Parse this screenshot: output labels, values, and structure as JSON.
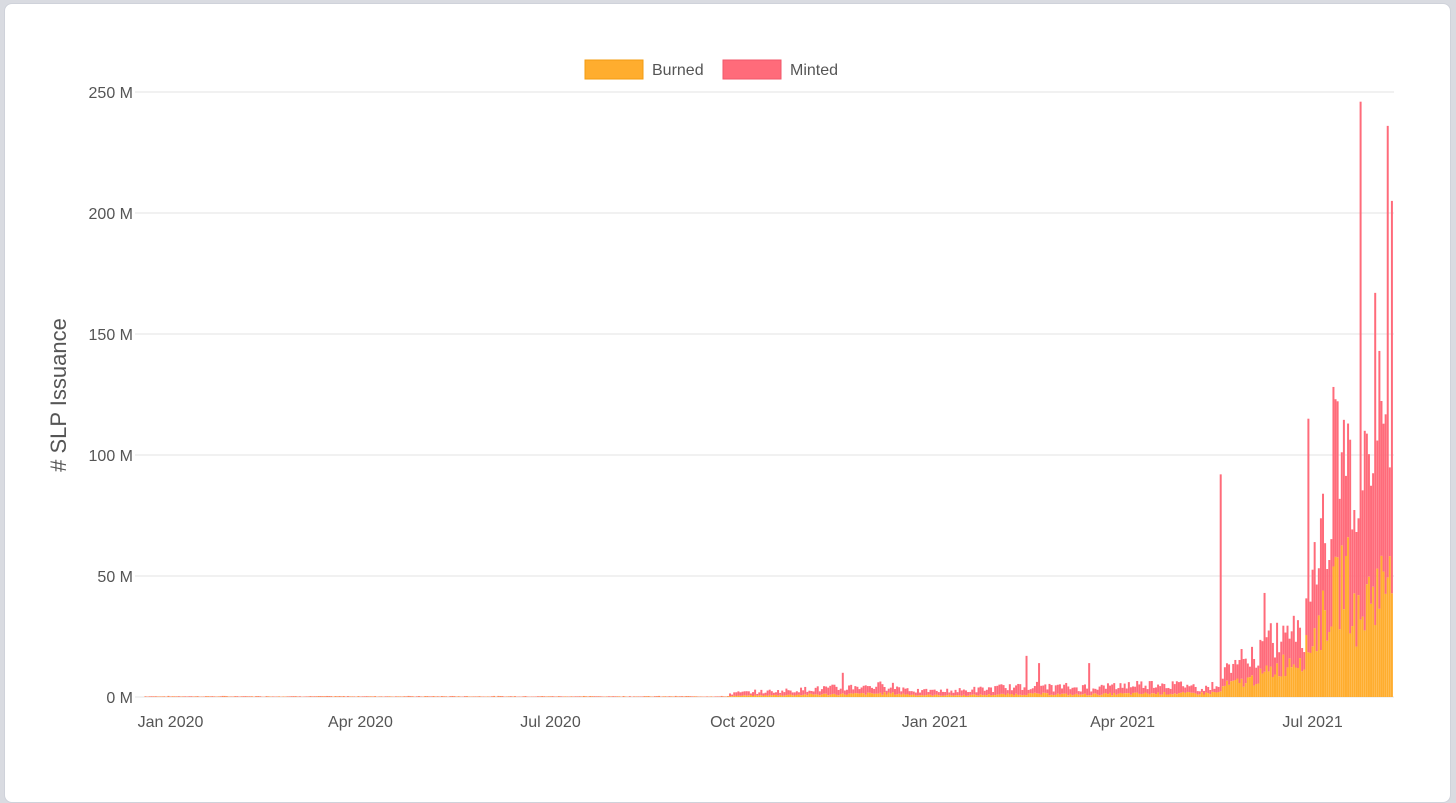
{
  "colors": {
    "burned_fill": "#ffad2e",
    "burned_stroke": "#f39c12",
    "minted_fill": "#ff6b7a",
    "minted_stroke": "#f2576a",
    "grid": "#e3e3e3",
    "text": "#555555"
  },
  "chart_data": {
    "type": "bar",
    "stacked": true,
    "ylabel": "# SLP Issuance",
    "ylim": [
      0,
      250
    ],
    "y_unit": "M",
    "yticks": [
      {
        "value": 0,
        "label": "0 M"
      },
      {
        "value": 50,
        "label": "50 M"
      },
      {
        "value": 100,
        "label": "100 M"
      },
      {
        "value": 150,
        "label": "150 M"
      },
      {
        "value": 200,
        "label": "200 M"
      },
      {
        "value": 250,
        "label": "250 M"
      }
    ],
    "xlim": [
      "2019-12-15",
      "2021-08-09"
    ],
    "xticks": [
      {
        "date": "2020-01-01",
        "label": "Jan 2020"
      },
      {
        "date": "2020-04-01",
        "label": "Apr 2020"
      },
      {
        "date": "2020-07-01",
        "label": "Jul 2020"
      },
      {
        "date": "2020-10-01",
        "label": "Oct 2020"
      },
      {
        "date": "2021-01-01",
        "label": "Jan 2021"
      },
      {
        "date": "2021-04-01",
        "label": "Apr 2021"
      },
      {
        "date": "2021-07-01",
        "label": "Jul 2021"
      }
    ],
    "grid": true,
    "legend_position": "top-center",
    "series": [
      {
        "name": "Burned",
        "points": [
          [
            "2020-09-25",
            0.5
          ],
          [
            "2020-10-15",
            0.7
          ],
          [
            "2020-11-01",
            1.0
          ],
          [
            "2020-11-20",
            1.2
          ],
          [
            "2020-12-10",
            1.5
          ],
          [
            "2020-12-25",
            0.8
          ],
          [
            "2021-01-15",
            0.7
          ],
          [
            "2021-02-01",
            1.0
          ],
          [
            "2021-02-20",
            1.3
          ],
          [
            "2021-03-10",
            1.0
          ],
          [
            "2021-04-01",
            1.3
          ],
          [
            "2021-04-20",
            1.5
          ],
          [
            "2021-05-10",
            1.5
          ],
          [
            "2021-05-18",
            2.0
          ],
          [
            "2021-05-19",
            4.5
          ],
          [
            "2021-05-24",
            5.5
          ],
          [
            "2021-05-30",
            6.5
          ],
          [
            "2021-06-05",
            8.0
          ],
          [
            "2021-06-12",
            11.0
          ],
          [
            "2021-06-18",
            14.0
          ],
          [
            "2021-06-25",
            17.0
          ],
          [
            "2021-06-28",
            18.5
          ],
          [
            "2021-07-01",
            25.0
          ],
          [
            "2021-07-05",
            30.0
          ],
          [
            "2021-07-08",
            36.0
          ],
          [
            "2021-07-11",
            40.0
          ],
          [
            "2021-07-14",
            45.0
          ],
          [
            "2021-07-16",
            55.0
          ],
          [
            "2021-07-18",
            48.0
          ],
          [
            "2021-07-21",
            35.0
          ],
          [
            "2021-07-24",
            30.0
          ],
          [
            "2021-07-27",
            40.0
          ],
          [
            "2021-07-30",
            46.0
          ],
          [
            "2021-08-02",
            45.0
          ],
          [
            "2021-08-05",
            48.0
          ],
          [
            "2021-08-07",
            62.0
          ]
        ]
      },
      {
        "name": "Minted",
        "points": [
          [
            "2020-09-25",
            1.0
          ],
          [
            "2020-10-15",
            1.5
          ],
          [
            "2020-11-01",
            2.0
          ],
          [
            "2020-11-20",
            2.5
          ],
          [
            "2020-12-10",
            3.0
          ],
          [
            "2020-12-25",
            1.5
          ],
          [
            "2021-01-15",
            1.8
          ],
          [
            "2021-02-01",
            2.5
          ],
          [
            "2021-02-20",
            3.0
          ],
          [
            "2021-03-10",
            2.5
          ],
          [
            "2021-04-01",
            3.0
          ],
          [
            "2021-04-20",
            4.0
          ],
          [
            "2021-05-10",
            2.0
          ],
          [
            "2021-05-18",
            3.0
          ],
          [
            "2021-05-19",
            5.0
          ],
          [
            "2021-05-24",
            7.0
          ],
          [
            "2021-05-30",
            8.0
          ],
          [
            "2021-06-05",
            9.0
          ],
          [
            "2021-06-12",
            11.0
          ],
          [
            "2021-06-18",
            12.0
          ],
          [
            "2021-06-25",
            13.0
          ],
          [
            "2021-06-28",
            13.5
          ],
          [
            "2021-07-01",
            25.0
          ],
          [
            "2021-07-05",
            35.0
          ],
          [
            "2021-07-08",
            40.0
          ],
          [
            "2021-07-11",
            45.0
          ],
          [
            "2021-07-14",
            50.0
          ],
          [
            "2021-07-16",
            55.0
          ],
          [
            "2021-07-18",
            50.0
          ],
          [
            "2021-07-21",
            60.0
          ],
          [
            "2021-07-24",
            65.0
          ],
          [
            "2021-07-27",
            60.0
          ],
          [
            "2021-07-30",
            55.0
          ],
          [
            "2021-08-02",
            50.0
          ],
          [
            "2021-08-05",
            45.0
          ],
          [
            "2021-08-07",
            40.0
          ]
        ],
        "spikes": [
          [
            "2020-11-18",
            10
          ],
          [
            "2021-02-14",
            17
          ],
          [
            "2021-02-20",
            14
          ],
          [
            "2021-03-16",
            14
          ],
          [
            "2021-05-18",
            92
          ],
          [
            "2021-06-08",
            43
          ],
          [
            "2021-06-29",
            115
          ],
          [
            "2021-07-06",
            84
          ],
          [
            "2021-07-18",
            113
          ],
          [
            "2021-07-24",
            246
          ],
          [
            "2021-07-26",
            110
          ],
          [
            "2021-07-31",
            167
          ],
          [
            "2021-08-02",
            143
          ],
          [
            "2021-08-06",
            236
          ],
          [
            "2021-08-08",
            205
          ]
        ]
      }
    ]
  }
}
